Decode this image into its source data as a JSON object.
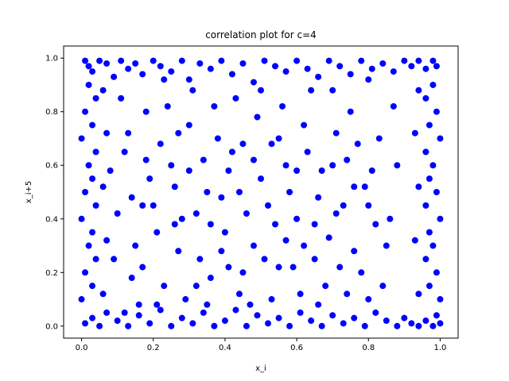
{
  "chart_data": {
    "type": "scatter",
    "title": "correlation plot for c=4",
    "xlabel": "x_i",
    "ylabel": "x_i+5",
    "xlim": [
      -0.05,
      1.05
    ],
    "ylim": [
      -0.045,
      1.045
    ],
    "xticks": [
      "0.0",
      "0.2",
      "0.4",
      "0.6",
      "0.8",
      "1.0"
    ],
    "yticks": [
      "0.0",
      "0.2",
      "0.4",
      "0.6",
      "0.8",
      "1.0"
    ],
    "xtick_values": [
      0.0,
      0.2,
      0.4,
      0.6,
      0.8,
      1.0
    ],
    "ytick_values": [
      0.0,
      0.2,
      0.4,
      0.6,
      0.8,
      1.0
    ],
    "grid": false,
    "legend": "none",
    "marker_color": "#0000ff",
    "points": [
      [
        0.01,
        0.99
      ],
      [
        0.02,
        0.97
      ],
      [
        0.03,
        0.95
      ],
      [
        0.05,
        0.99
      ],
      [
        0.07,
        0.98
      ],
      [
        0.09,
        0.93
      ],
      [
        0.11,
        0.99
      ],
      [
        0.13,
        0.96
      ],
      [
        0.15,
        0.98
      ],
      [
        0.17,
        0.94
      ],
      [
        0.2,
        0.99
      ],
      [
        0.22,
        0.97
      ],
      [
        0.25,
        0.95
      ],
      [
        0.28,
        0.99
      ],
      [
        0.3,
        0.92
      ],
      [
        0.33,
        0.98
      ],
      [
        0.36,
        0.96
      ],
      [
        0.39,
        0.99
      ],
      [
        0.42,
        0.94
      ],
      [
        0.45,
        0.98
      ],
      [
        0.48,
        0.91
      ],
      [
        0.51,
        0.99
      ],
      [
        0.54,
        0.97
      ],
      [
        0.57,
        0.95
      ],
      [
        0.6,
        0.99
      ],
      [
        0.63,
        0.96
      ],
      [
        0.66,
        0.93
      ],
      [
        0.69,
        0.99
      ],
      [
        0.72,
        0.97
      ],
      [
        0.75,
        0.94
      ],
      [
        0.78,
        0.99
      ],
      [
        0.81,
        0.96
      ],
      [
        0.84,
        0.98
      ],
      [
        0.87,
        0.95
      ],
      [
        0.9,
        0.99
      ],
      [
        0.92,
        0.97
      ],
      [
        0.94,
        0.99
      ],
      [
        0.96,
        0.96
      ],
      [
        0.98,
        0.99
      ],
      [
        0.99,
        0.97
      ],
      [
        0.01,
        0.01
      ],
      [
        0.03,
        0.03
      ],
      [
        0.05,
        0.0
      ],
      [
        0.07,
        0.05
      ],
      [
        0.1,
        0.02
      ],
      [
        0.13,
        0.0
      ],
      [
        0.16,
        0.04
      ],
      [
        0.19,
        0.01
      ],
      [
        0.22,
        0.06
      ],
      [
        0.25,
        0.0
      ],
      [
        0.28,
        0.03
      ],
      [
        0.31,
        0.01
      ],
      [
        0.34,
        0.05
      ],
      [
        0.37,
        0.0
      ],
      [
        0.4,
        0.02
      ],
      [
        0.43,
        0.06
      ],
      [
        0.46,
        0.0
      ],
      [
        0.49,
        0.04
      ],
      [
        0.52,
        0.01
      ],
      [
        0.55,
        0.03
      ],
      [
        0.58,
        0.0
      ],
      [
        0.61,
        0.05
      ],
      [
        0.64,
        0.02
      ],
      [
        0.67,
        0.0
      ],
      [
        0.7,
        0.04
      ],
      [
        0.73,
        0.01
      ],
      [
        0.76,
        0.03
      ],
      [
        0.79,
        0.0
      ],
      [
        0.82,
        0.05
      ],
      [
        0.85,
        0.02
      ],
      [
        0.88,
        0.0
      ],
      [
        0.9,
        0.03
      ],
      [
        0.92,
        0.01
      ],
      [
        0.94,
        0.0
      ],
      [
        0.96,
        0.02
      ],
      [
        0.98,
        0.0
      ],
      [
        0.99,
        0.04
      ],
      [
        1.0,
        0.01
      ],
      [
        0.0,
        0.1
      ],
      [
        0.01,
        0.2
      ],
      [
        0.02,
        0.3
      ],
      [
        0.0,
        0.4
      ],
      [
        0.01,
        0.5
      ],
      [
        0.02,
        0.6
      ],
      [
        0.0,
        0.7
      ],
      [
        0.01,
        0.8
      ],
      [
        0.02,
        0.9
      ],
      [
        0.03,
        0.15
      ],
      [
        0.04,
        0.25
      ],
      [
        0.03,
        0.35
      ],
      [
        0.04,
        0.45
      ],
      [
        0.03,
        0.55
      ],
      [
        0.04,
        0.65
      ],
      [
        0.03,
        0.75
      ],
      [
        0.04,
        0.85
      ],
      [
        0.06,
        0.12
      ],
      [
        0.07,
        0.32
      ],
      [
        0.06,
        0.52
      ],
      [
        0.07,
        0.72
      ],
      [
        0.06,
        0.88
      ],
      [
        1.0,
        0.1
      ],
      [
        0.99,
        0.2
      ],
      [
        0.98,
        0.3
      ],
      [
        1.0,
        0.4
      ],
      [
        0.99,
        0.5
      ],
      [
        0.98,
        0.6
      ],
      [
        1.0,
        0.7
      ],
      [
        0.99,
        0.8
      ],
      [
        0.98,
        0.9
      ],
      [
        0.97,
        0.15
      ],
      [
        0.96,
        0.25
      ],
      [
        0.97,
        0.35
      ],
      [
        0.96,
        0.45
      ],
      [
        0.97,
        0.55
      ],
      [
        0.96,
        0.65
      ],
      [
        0.97,
        0.75
      ],
      [
        0.96,
        0.85
      ],
      [
        0.94,
        0.12
      ],
      [
        0.93,
        0.32
      ],
      [
        0.94,
        0.52
      ],
      [
        0.93,
        0.72
      ],
      [
        0.94,
        0.88
      ],
      [
        0.15,
        0.3
      ],
      [
        0.2,
        0.45
      ],
      [
        0.25,
        0.6
      ],
      [
        0.3,
        0.75
      ],
      [
        0.35,
        0.5
      ],
      [
        0.4,
        0.35
      ],
      [
        0.45,
        0.2
      ],
      [
        0.5,
        0.55
      ],
      [
        0.55,
        0.7
      ],
      [
        0.6,
        0.4
      ],
      [
        0.65,
        0.25
      ],
      [
        0.7,
        0.6
      ],
      [
        0.75,
        0.8
      ],
      [
        0.8,
        0.45
      ],
      [
        0.85,
        0.3
      ],
      [
        0.88,
        0.6
      ],
      [
        0.12,
        0.65
      ],
      [
        0.18,
        0.8
      ],
      [
        0.23,
        0.15
      ],
      [
        0.28,
        0.4
      ],
      [
        0.33,
        0.25
      ],
      [
        0.38,
        0.7
      ],
      [
        0.43,
        0.85
      ],
      [
        0.48,
        0.3
      ],
      [
        0.53,
        0.1
      ],
      [
        0.58,
        0.5
      ],
      [
        0.63,
        0.65
      ],
      [
        0.68,
        0.15
      ],
      [
        0.73,
        0.45
      ],
      [
        0.78,
        0.2
      ],
      [
        0.83,
        0.7
      ],
      [
        0.86,
        0.4
      ],
      [
        0.1,
        0.42
      ],
      [
        0.14,
        0.18
      ],
      [
        0.19,
        0.55
      ],
      [
        0.24,
        0.82
      ],
      [
        0.29,
        0.1
      ],
      [
        0.34,
        0.62
      ],
      [
        0.39,
        0.48
      ],
      [
        0.44,
        0.12
      ],
      [
        0.49,
        0.78
      ],
      [
        0.54,
        0.38
      ],
      [
        0.59,
        0.22
      ],
      [
        0.64,
        0.88
      ],
      [
        0.69,
        0.33
      ],
      [
        0.74,
        0.62
      ],
      [
        0.79,
        0.52
      ],
      [
        0.84,
        0.15
      ],
      [
        0.11,
        0.85
      ],
      [
        0.16,
        0.08
      ],
      [
        0.21,
        0.35
      ],
      [
        0.26,
        0.52
      ],
      [
        0.31,
        0.88
      ],
      [
        0.36,
        0.18
      ],
      [
        0.41,
        0.58
      ],
      [
        0.46,
        0.42
      ],
      [
        0.51,
        0.25
      ],
      [
        0.56,
        0.82
      ],
      [
        0.61,
        0.12
      ],
      [
        0.66,
        0.48
      ],
      [
        0.71,
        0.72
      ],
      [
        0.76,
        0.28
      ],
      [
        0.81,
        0.58
      ],
      [
        0.87,
        0.82
      ],
      [
        0.08,
        0.58
      ],
      [
        0.13,
        0.72
      ],
      [
        0.17,
        0.22
      ],
      [
        0.22,
        0.68
      ],
      [
        0.27,
        0.28
      ],
      [
        0.32,
        0.42
      ],
      [
        0.37,
        0.82
      ],
      [
        0.42,
        0.65
      ],
      [
        0.47,
        0.08
      ],
      [
        0.52,
        0.45
      ],
      [
        0.57,
        0.32
      ],
      [
        0.62,
        0.75
      ],
      [
        0.67,
        0.58
      ],
      [
        0.72,
        0.22
      ],
      [
        0.77,
        0.68
      ],
      [
        0.82,
        0.38
      ],
      [
        0.09,
        0.25
      ],
      [
        0.14,
        0.48
      ],
      [
        0.18,
        0.62
      ],
      [
        0.23,
        0.92
      ],
      [
        0.27,
        0.72
      ],
      [
        0.32,
        0.15
      ],
      [
        0.36,
        0.38
      ],
      [
        0.41,
        0.22
      ],
      [
        0.45,
        0.68
      ],
      [
        0.5,
        0.88
      ],
      [
        0.55,
        0.22
      ],
      [
        0.6,
        0.58
      ],
      [
        0.65,
        0.38
      ],
      [
        0.7,
        0.88
      ],
      [
        0.74,
        0.12
      ],
      [
        0.8,
        0.92
      ],
      [
        0.12,
        0.05
      ],
      [
        0.17,
        0.45
      ],
      [
        0.21,
        0.08
      ],
      [
        0.26,
        0.38
      ],
      [
        0.3,
        0.58
      ],
      [
        0.35,
        0.08
      ],
      [
        0.39,
        0.28
      ],
      [
        0.44,
        0.5
      ],
      [
        0.48,
        0.62
      ],
      [
        0.53,
        0.68
      ],
      [
        0.57,
        0.6
      ],
      [
        0.62,
        0.3
      ],
      [
        0.66,
        0.08
      ],
      [
        0.71,
        0.42
      ],
      [
        0.76,
        0.52
      ],
      [
        0.8,
        0.1
      ]
    ]
  }
}
